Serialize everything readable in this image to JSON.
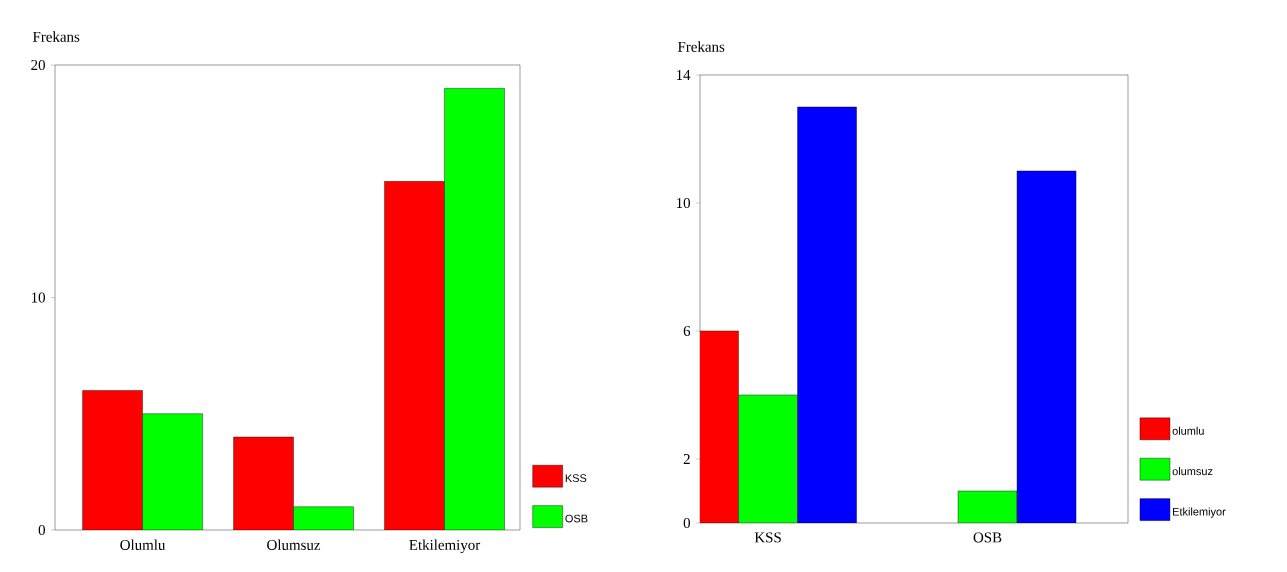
{
  "chart_data": [
    {
      "type": "bar",
      "ylabel": "Frekans",
      "categories": [
        "Olumlu",
        "Olumsuz",
        "Etkilemiyor"
      ],
      "ylim": [
        0,
        20
      ],
      "yticks": [
        0,
        10,
        20
      ],
      "legend": "right",
      "series": [
        {
          "name": "KSS",
          "color": "#ff0000",
          "values": [
            6,
            4,
            15
          ]
        },
        {
          "name": "OSB",
          "color": "#00ff00",
          "values": [
            5,
            1,
            19
          ]
        }
      ]
    },
    {
      "type": "bar",
      "ylabel": "Frekans",
      "categories": [
        "KSS",
        "OSB"
      ],
      "ylim": [
        0,
        14
      ],
      "yticks": [
        0,
        2,
        6,
        10,
        14
      ],
      "legend": "right",
      "series": [
        {
          "name": "olumlu",
          "color": "#ff0000",
          "values": [
            6,
            null
          ]
        },
        {
          "name": "olumsuz",
          "color": "#00ff00",
          "values": [
            4,
            1
          ]
        },
        {
          "name": "Etkilemiyor",
          "color": "#0000ff",
          "values": [
            13,
            11
          ]
        }
      ]
    }
  ]
}
